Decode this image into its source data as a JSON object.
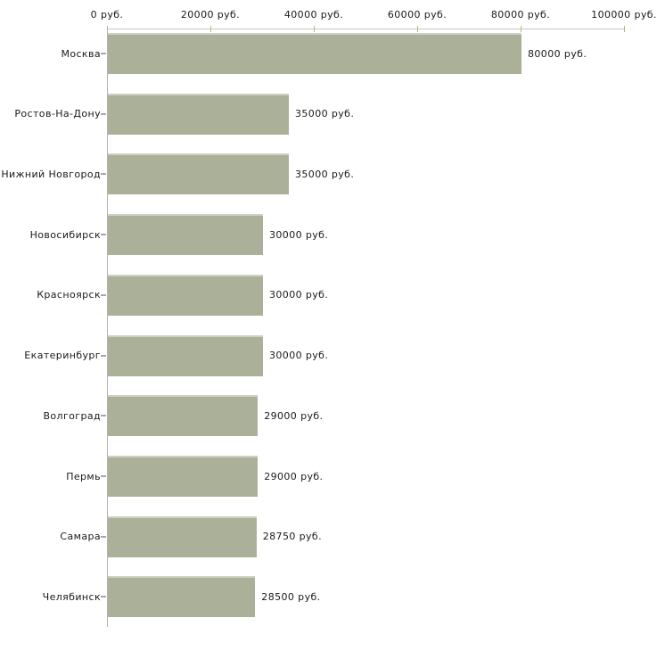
{
  "chart_data": {
    "type": "bar",
    "orientation": "horizontal",
    "title": "",
    "xlabel": "",
    "ylabel": "",
    "categories": [
      "Москва",
      "Ростов-На-Дону",
      "Нижний Новгород",
      "Новосибирск",
      "Красноярск",
      "Екатеринбург",
      "Волгоград",
      "Пермь",
      "Самара",
      "Челябинск"
    ],
    "values": [
      80000,
      35000,
      35000,
      30000,
      30000,
      30000,
      29000,
      29000,
      28750,
      28500
    ],
    "value_labels": [
      "80000 руб.",
      "35000 руб.",
      "35000 руб.",
      "30000 руб.",
      "30000 руб.",
      "30000 руб.",
      "29000 руб.",
      "29000 руб.",
      "28750 руб.",
      "28500 руб."
    ],
    "xlim": [
      0,
      100000
    ],
    "x_ticks": [
      0,
      20000,
      40000,
      60000,
      80000,
      100000
    ],
    "x_tick_labels": [
      "0 руб.",
      "20000 руб.",
      "40000 руб.",
      "60000 руб.",
      "80000 руб.",
      "100000 руб."
    ],
    "unit": "руб.",
    "grid": false,
    "legend": "none",
    "colors": {
      "bar_fill": "#abb199",
      "bar_top_edge": "#ced1c1",
      "x_axis_line": "#c8c8c8",
      "y_axis_line": "#b2b2b2",
      "x_tick_mark": "#b5b584",
      "y_tick_mark": "#a9a99b",
      "text": "#1a1a1a",
      "background": "#ffffff"
    }
  }
}
